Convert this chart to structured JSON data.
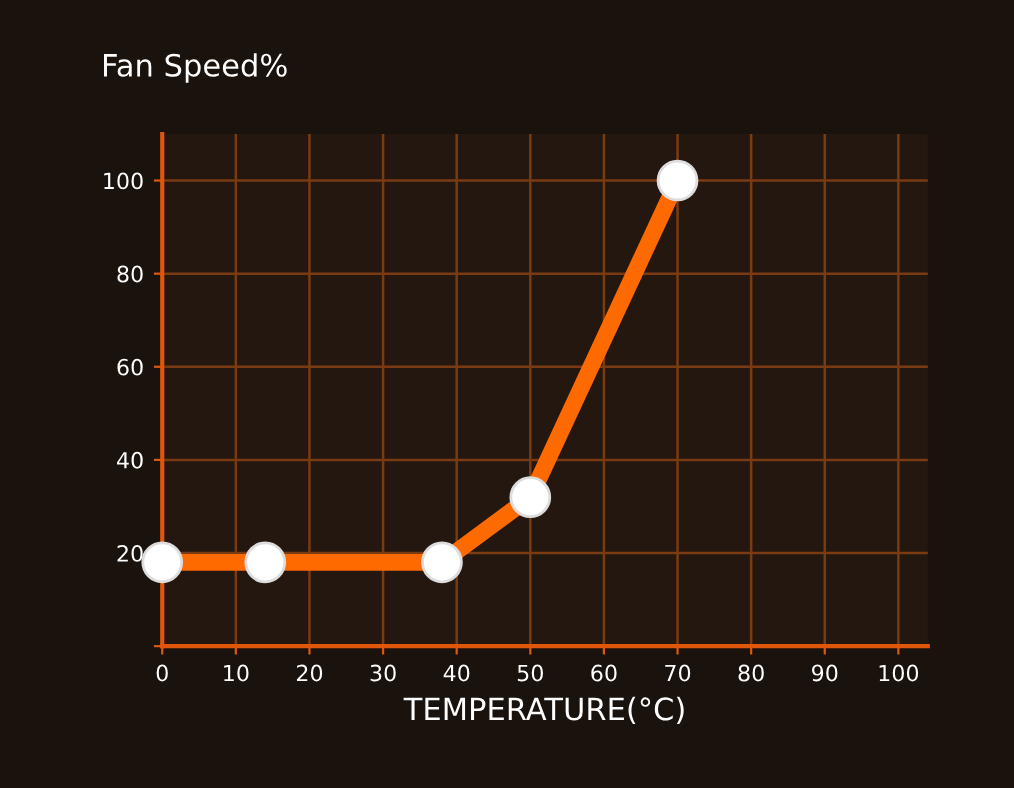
{
  "chart_data": {
    "type": "line",
    "ylabel": "Fan Speed%",
    "xlabel": "TEMPERATURE(°C)",
    "x": [
      0,
      14,
      38,
      50,
      70
    ],
    "series": [
      {
        "color": "#ff6a00",
        "values": [
          18,
          18,
          18,
          32,
          100
        ]
      }
    ],
    "xlim": [
      0,
      104
    ],
    "ylim": [
      0,
      110
    ],
    "xticks": [
      0,
      10,
      20,
      30,
      40,
      50,
      60,
      70,
      80,
      90,
      100
    ],
    "yticks": [
      {
        "value": 0,
        "label": null
      },
      20,
      40,
      60,
      80,
      100
    ],
    "grid": true,
    "marker": "circle",
    "line_style": "solid"
  }
}
